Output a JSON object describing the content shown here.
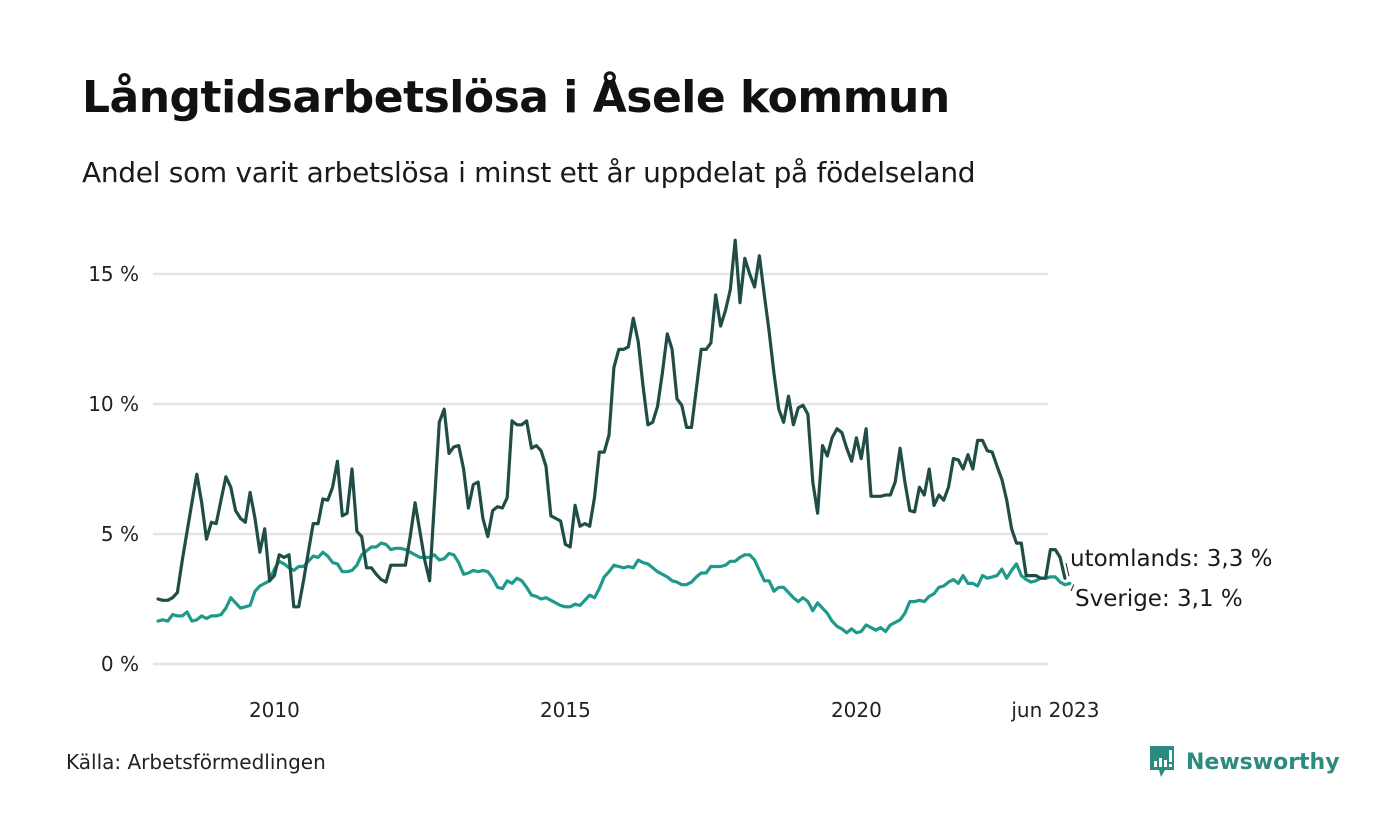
{
  "title": "Långtidsarbetslösa i Åsele kommun",
  "subtitle": "Andel som varit arbetslösa i minst ett år uppdelat på födelseland",
  "source": "Källa: Arbetsförmedlingen",
  "brand": "Newsworthy",
  "colors": {
    "utomlands": "#214d47",
    "sverige": "#1f9a8a",
    "grid": "#e3e3e8",
    "brand": "#2c8b80"
  },
  "chart_data": {
    "type": "line",
    "title": "Långtidsarbetslösa i Åsele kommun",
    "xlabel": "",
    "ylabel": "",
    "x_start": "2008-01",
    "x_end": "2023-06",
    "frequency": "monthly",
    "ylim": [
      0,
      16.5
    ],
    "y_ticks": [
      {
        "value": 0,
        "label": "0 %"
      },
      {
        "value": 5,
        "label": "5 %"
      },
      {
        "value": 10,
        "label": "10 %"
      },
      {
        "value": 15,
        "label": "15 %"
      }
    ],
    "x_ticks": [
      {
        "value": 2010.0,
        "label": "2010"
      },
      {
        "value": 2015.0,
        "label": "2015"
      },
      {
        "value": 2020.0,
        "label": "2020"
      },
      {
        "value": 2023.42,
        "label": "jun 2023"
      }
    ],
    "grid": true,
    "series": [
      {
        "name": "utomlands",
        "end_label": "utomlands: 3,3 %",
        "values": [
          2.5,
          2.45,
          2.45,
          2.55,
          2.75,
          4.0,
          5.1,
          6.2,
          7.3,
          6.2,
          4.8,
          5.45,
          5.4,
          6.3,
          7.2,
          6.8,
          5.9,
          5.6,
          5.45,
          6.6,
          5.6,
          4.3,
          5.2,
          3.2,
          3.4,
          4.2,
          4.1,
          4.2,
          2.2,
          2.2,
          3.2,
          4.3,
          5.4,
          5.4,
          6.35,
          6.3,
          6.8,
          7.8,
          5.7,
          5.8,
          7.5,
          5.1,
          4.9,
          3.7,
          3.7,
          3.45,
          3.25,
          3.15,
          3.8,
          3.8,
          3.8,
          3.8,
          4.9,
          6.2,
          5.1,
          4.0,
          3.2,
          6.2,
          9.3,
          9.8,
          8.1,
          8.35,
          8.4,
          7.5,
          6.0,
          6.9,
          7.0,
          5.6,
          4.9,
          5.9,
          6.05,
          6.0,
          6.4,
          9.35,
          9.2,
          9.2,
          9.35,
          8.3,
          8.4,
          8.2,
          7.6,
          5.7,
          5.6,
          5.5,
          4.6,
          4.5,
          6.1,
          5.3,
          5.4,
          5.3,
          6.4,
          8.15,
          8.15,
          8.8,
          11.4,
          12.1,
          12.1,
          12.2,
          13.3,
          12.4,
          10.7,
          9.2,
          9.3,
          9.9,
          11.2,
          12.7,
          12.1,
          10.2,
          9.95,
          9.1,
          9.1,
          10.6,
          12.1,
          12.1,
          12.35,
          14.2,
          13.0,
          13.6,
          14.4,
          16.3,
          13.9,
          15.6,
          15.0,
          14.5,
          15.7,
          14.2,
          12.8,
          11.2,
          9.8,
          9.3,
          10.3,
          9.2,
          9.85,
          9.95,
          9.6,
          7.0,
          5.8,
          8.4,
          8.0,
          8.7,
          9.05,
          8.9,
          8.3,
          7.8,
          8.7,
          7.9,
          9.05,
          6.45,
          6.45,
          6.45,
          6.5,
          6.5,
          7.0,
          8.3,
          7.0,
          5.9,
          5.85,
          6.8,
          6.5,
          7.5,
          6.1,
          6.5,
          6.3,
          6.8,
          7.9,
          7.85,
          7.5,
          8.05,
          7.5,
          8.6,
          8.6,
          8.2,
          8.15,
          7.6,
          7.1,
          6.3,
          5.2,
          4.65,
          4.65,
          3.4,
          3.4,
          3.4,
          3.3,
          3.3,
          4.4,
          4.4,
          4.1,
          3.3
        ]
      },
      {
        "name": "Sverige",
        "end_label": "Sverige: 3,1 %",
        "values": [
          1.65,
          1.7,
          1.65,
          1.9,
          1.85,
          1.85,
          2.0,
          1.65,
          1.7,
          1.85,
          1.75,
          1.85,
          1.85,
          1.9,
          2.15,
          2.55,
          2.35,
          2.15,
          2.2,
          2.25,
          2.8,
          3.0,
          3.1,
          3.2,
          3.65,
          3.95,
          3.85,
          3.7,
          3.6,
          3.75,
          3.75,
          3.95,
          4.15,
          4.1,
          4.3,
          4.15,
          3.9,
          3.85,
          3.55,
          3.55,
          3.6,
          3.8,
          4.2,
          4.35,
          4.5,
          4.5,
          4.65,
          4.6,
          4.4,
          4.45,
          4.45,
          4.4,
          4.3,
          4.2,
          4.1,
          4.1,
          4.1,
          4.2,
          4.0,
          4.05,
          4.25,
          4.2,
          3.9,
          3.45,
          3.5,
          3.6,
          3.55,
          3.6,
          3.55,
          3.3,
          2.95,
          2.9,
          3.2,
          3.1,
          3.3,
          3.2,
          2.95,
          2.65,
          2.6,
          2.5,
          2.55,
          2.45,
          2.35,
          2.25,
          2.2,
          2.2,
          2.3,
          2.25,
          2.45,
          2.65,
          2.55,
          2.9,
          3.35,
          3.55,
          3.8,
          3.75,
          3.7,
          3.75,
          3.7,
          4.0,
          3.9,
          3.85,
          3.7,
          3.55,
          3.45,
          3.35,
          3.2,
          3.15,
          3.05,
          3.05,
          3.15,
          3.35,
          3.5,
          3.5,
          3.75,
          3.75,
          3.75,
          3.8,
          3.95,
          3.95,
          4.1,
          4.2,
          4.2,
          4.0,
          3.6,
          3.2,
          3.2,
          2.8,
          2.95,
          2.95,
          2.75,
          2.55,
          2.4,
          2.55,
          2.4,
          2.05,
          2.35,
          2.15,
          1.95,
          1.65,
          1.45,
          1.35,
          1.2,
          1.35,
          1.2,
          1.25,
          1.5,
          1.4,
          1.3,
          1.4,
          1.25,
          1.5,
          1.6,
          1.7,
          1.95,
          2.4,
          2.4,
          2.45,
          2.4,
          2.6,
          2.7,
          2.95,
          3.0,
          3.15,
          3.25,
          3.1,
          3.4,
          3.1,
          3.1,
          3.0,
          3.4,
          3.3,
          3.35,
          3.4,
          3.65,
          3.3,
          3.6,
          3.85,
          3.4,
          3.25,
          3.15,
          3.2,
          3.3,
          3.3,
          3.35,
          3.35,
          3.15,
          3.05,
          3.1
        ]
      }
    ]
  }
}
